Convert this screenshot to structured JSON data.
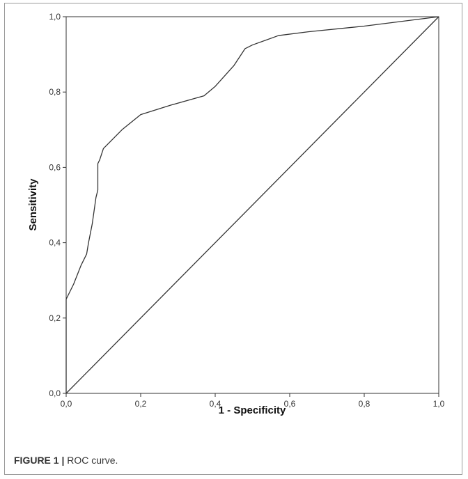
{
  "caption": {
    "label": "FIGURE 1 |",
    "text": "ROC curve."
  },
  "colors": {
    "background": "#ffffff",
    "frame": "#9a9a9a",
    "line": "#333333",
    "text": "#333333"
  },
  "chart_data": {
    "type": "line",
    "title": "",
    "xlabel": "1 - Specificity",
    "ylabel": "Sensitivity",
    "xlim": [
      0,
      1
    ],
    "ylim": [
      0,
      1
    ],
    "grid": false,
    "legend": "none",
    "x_ticks": [
      "0,0",
      "0,2",
      "0,4",
      "0,6",
      "0,8",
      "1,0"
    ],
    "y_ticks": [
      "0,0",
      "0,2",
      "0,4",
      "0,6",
      "0,8",
      "1,0"
    ],
    "series": [
      {
        "x": [
          0.0,
          0.0,
          0.02,
          0.04,
          0.055,
          0.06,
          0.07,
          0.08,
          0.085,
          0.085,
          0.09,
          0.1,
          0.12,
          0.15,
          0.2,
          0.28,
          0.37,
          0.4,
          0.45,
          0.48,
          0.5,
          0.57,
          0.65,
          0.8,
          1.0
        ],
        "y": [
          0.0,
          0.25,
          0.29,
          0.34,
          0.37,
          0.4,
          0.45,
          0.52,
          0.54,
          0.61,
          0.62,
          0.65,
          0.67,
          0.7,
          0.74,
          0.765,
          0.79,
          0.815,
          0.87,
          0.915,
          0.925,
          0.95,
          0.96,
          0.975,
          1.0
        ]
      },
      {
        "x": [
          0,
          1
        ],
        "y": [
          0,
          1
        ]
      }
    ]
  }
}
